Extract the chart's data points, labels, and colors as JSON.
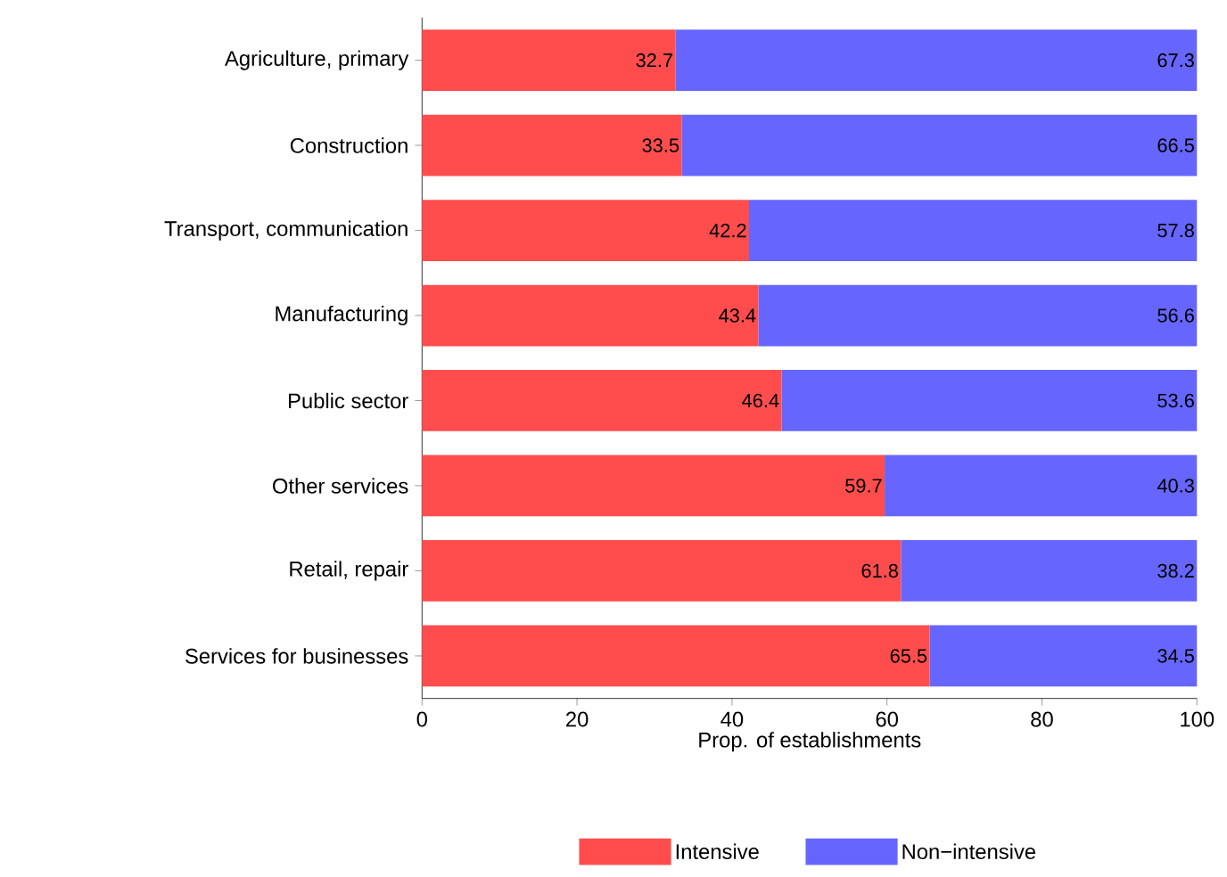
{
  "chart_data": {
    "type": "bar",
    "orientation": "horizontal",
    "stacked": true,
    "xlabel": "Prop. of establishments",
    "categories": [
      "Agriculture, primary",
      "Construction",
      "Transport, communication",
      "Manufacturing",
      "Public sector",
      "Other services",
      "Retail, repair",
      "Services for businesses"
    ],
    "series": [
      {
        "name": "Intensive",
        "color": "#ff4d4d",
        "values": [
          32.7,
          33.5,
          42.2,
          43.4,
          46.4,
          59.7,
          61.8,
          65.5
        ]
      },
      {
        "name": "Non−intensive",
        "color": "#6666ff",
        "values": [
          67.3,
          66.5,
          57.8,
          56.6,
          53.6,
          40.3,
          38.2,
          34.5
        ]
      }
    ],
    "xlim": [
      0,
      100
    ],
    "xticks": [
      0,
      20,
      40,
      60,
      80,
      100
    ],
    "data_labels": true,
    "legend": "bottom",
    "grid": false
  }
}
